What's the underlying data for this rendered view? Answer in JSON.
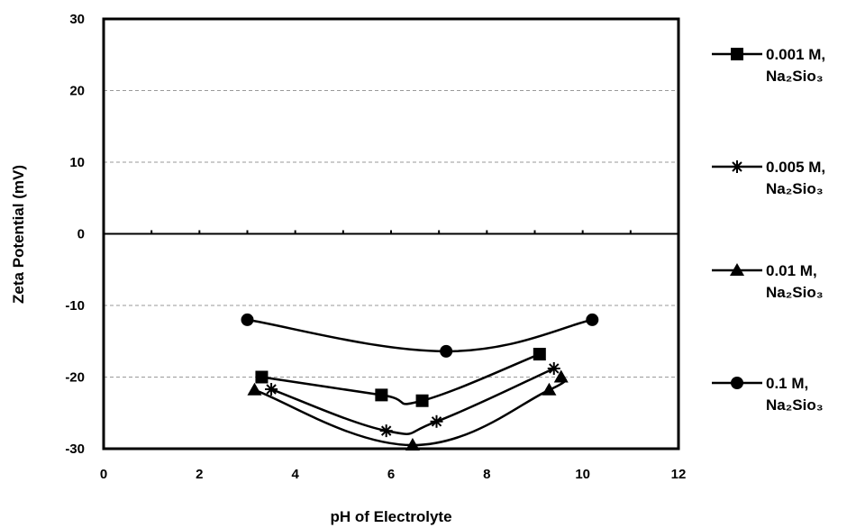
{
  "chart_data": {
    "type": "line",
    "title": "",
    "xlabel": "pH of Electrolyte",
    "ylabel": "Zeta  Potential (mV)",
    "xlim": [
      0,
      12
    ],
    "ylim": [
      -30,
      30
    ],
    "x_ticks": [
      "0",
      "2",
      "4",
      "6",
      "8",
      "10",
      "12"
    ],
    "y_ticks": [
      "-30",
      "-20",
      "-10",
      "0",
      "10",
      "20",
      "30"
    ],
    "grid": "horizontal dashed",
    "legend_position": "right",
    "series": [
      {
        "name": "0.001 M, Na₂Sio₃",
        "label_line1": "0.001 M,",
        "label_line2": "Na₂Sio₃",
        "marker": "square",
        "points": [
          [
            3.3,
            -20.0
          ],
          [
            5.8,
            -22.5
          ],
          [
            6.65,
            -23.3
          ],
          [
            9.1,
            -16.8
          ]
        ]
      },
      {
        "name": "0.005 M, Na₂Sio₃",
        "label_line1": "0.005 M,",
        "label_line2": "Na₂Sio₃",
        "marker": "star",
        "points": [
          [
            3.5,
            -21.7
          ],
          [
            5.9,
            -27.5
          ],
          [
            6.95,
            -26.2
          ],
          [
            9.4,
            -18.8
          ]
        ]
      },
      {
        "name": "0.01 M, Na₂Sio₃",
        "label_line1": "0.01 M,",
        "label_line2": "Na₂Sio₃",
        "marker": "triangle",
        "points": [
          [
            3.15,
            -21.8
          ],
          [
            6.45,
            -29.5
          ],
          [
            9.3,
            -21.8
          ],
          [
            9.55,
            -20.0
          ]
        ]
      },
      {
        "name": "0.1 M, Na₂Sio₃",
        "label_line1": "0.1 M,",
        "label_line2": "Na₂Sio₃",
        "marker": "circle",
        "points": [
          [
            3.0,
            -12.0
          ],
          [
            7.15,
            -16.4
          ],
          [
            10.2,
            -12.0
          ]
        ]
      }
    ],
    "colors": {
      "line": "#000000",
      "grid": "#9a9a9a",
      "background": "#ffffff"
    }
  }
}
